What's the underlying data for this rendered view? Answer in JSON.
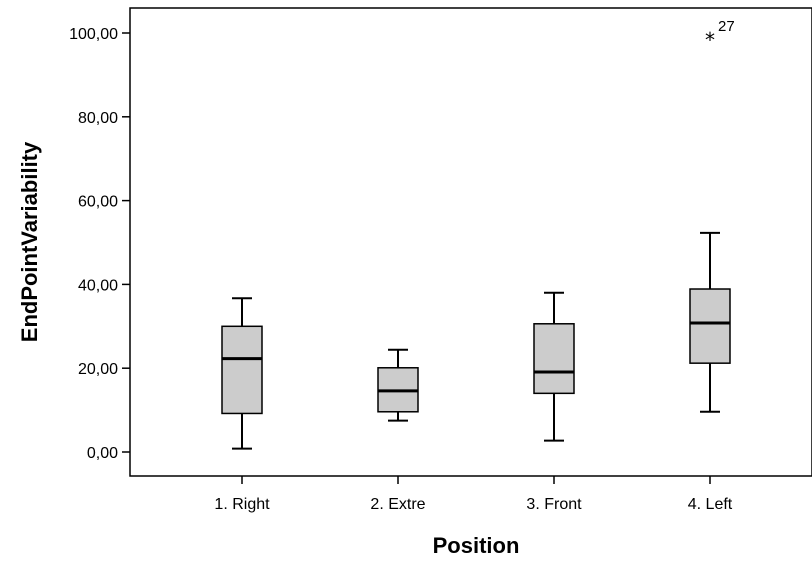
{
  "chart_data": {
    "type": "boxplot",
    "xlabel": "Position",
    "ylabel": "EndPointVariability",
    "ylim": [
      -5,
      108
    ],
    "yticks": [
      0,
      20,
      40,
      60,
      80,
      100
    ],
    "ytick_labels": [
      "0,00",
      "20,00",
      "40,00",
      "60,00",
      "80,00",
      "100,00"
    ],
    "categories": [
      "1. Right",
      "2. Extre",
      "3. Front",
      "4. Left"
    ],
    "boxes": [
      {
        "category": "1. Right",
        "whisker_low": 0.8,
        "q1": 9.2,
        "median": 22.3,
        "q3": 30.0,
        "whisker_high": 36.7
      },
      {
        "category": "2. Extre",
        "whisker_low": 7.5,
        "q1": 9.6,
        "median": 14.6,
        "q3": 20.1,
        "whisker_high": 24.4
      },
      {
        "category": "3. Front",
        "whisker_low": 2.7,
        "q1": 14.0,
        "median": 19.1,
        "q3": 30.6,
        "whisker_high": 38.0
      },
      {
        "category": "4. Left",
        "whisker_low": 9.6,
        "q1": 21.2,
        "median": 30.8,
        "q3": 38.9,
        "whisker_high": 52.3
      }
    ],
    "outliers": [
      {
        "category": "4. Left",
        "value": 98.8,
        "label": "27",
        "marker": "*"
      }
    ],
    "box_fill": "#cccccc",
    "line_color": "#000000",
    "grid": false
  }
}
